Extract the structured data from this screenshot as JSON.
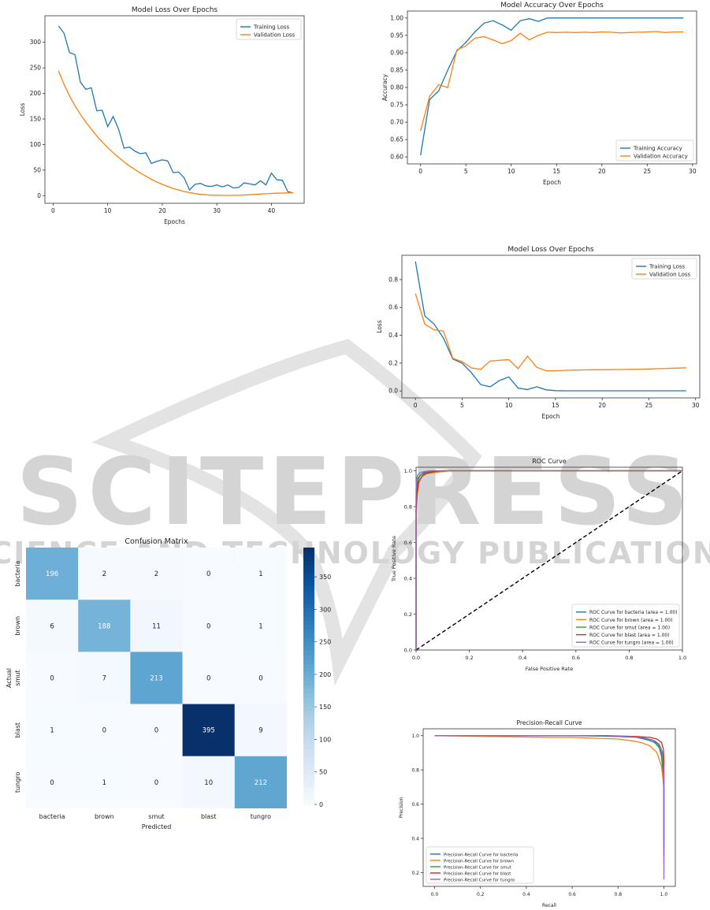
{
  "watermark": {
    "main": "SCITEPRESS",
    "sub": "SCIENCE AND TECHNOLOGY PUBLICATIONS"
  },
  "colors": {
    "blue": "#1f77b4",
    "orange": "#ff7f0e",
    "green": "#2ca02c",
    "red": "#d62728",
    "purple": "#9467bd"
  },
  "chart_data": [
    {
      "type": "line",
      "title": "Model Loss Over Epochs",
      "xlabel": "Epochs",
      "ylabel": "Loss",
      "xlim": [
        -1.5,
        46
      ],
      "ylim": [
        -15,
        352
      ],
      "xticks": [
        0,
        10,
        20,
        30,
        40
      ],
      "yticks": [
        0,
        50,
        100,
        150,
        200,
        250,
        300
      ],
      "legend": "top-right",
      "grid": false,
      "series": [
        {
          "name": "Training Loss",
          "color": "#1f77b4",
          "x": [
            1,
            2,
            3,
            4,
            5,
            6,
            7,
            8,
            9,
            10,
            11,
            12,
            13,
            14,
            15,
            16,
            17,
            18,
            19,
            20,
            21,
            22,
            23,
            24,
            25,
            26,
            27,
            28,
            29,
            30,
            31,
            32,
            33,
            34,
            35,
            36,
            37,
            38,
            39,
            40,
            41,
            42,
            43,
            44
          ],
          "y": [
            332,
            318,
            280,
            276,
            222,
            208,
            211,
            166,
            167,
            135,
            155,
            130,
            93,
            95,
            87,
            82,
            84,
            63,
            67,
            70,
            68,
            45,
            46,
            35,
            11,
            22,
            24,
            19,
            18,
            21,
            17,
            21,
            15,
            16,
            25,
            23,
            21,
            29,
            21,
            44,
            31,
            30,
            8,
            5
          ]
        },
        {
          "name": "Validation Loss",
          "color": "#ff7f0e",
          "x": [
            1,
            2,
            3,
            4,
            5,
            6,
            7,
            8,
            9,
            10,
            11,
            12,
            13,
            14,
            15,
            16,
            17,
            18,
            19,
            20,
            21,
            22,
            23,
            24,
            25,
            26,
            27,
            28,
            29,
            30,
            31,
            32,
            33,
            34,
            35,
            36,
            37,
            38,
            39,
            40,
            41,
            42,
            43,
            44
          ],
          "y": [
            244,
            218,
            195,
            176,
            159,
            144,
            130,
            117,
            105,
            94,
            84,
            75,
            66,
            58,
            51,
            44,
            38,
            32,
            27,
            22,
            18,
            14,
            11,
            8,
            6,
            4,
            2.5,
            1.5,
            1,
            0.7,
            0.5,
            0.4,
            0.5,
            0.8,
            1.2,
            1.7,
            2.3,
            3,
            3.6,
            4.2,
            4.7,
            5.1,
            5.4,
            5.6
          ]
        }
      ]
    },
    {
      "type": "line",
      "title": "Model Accuracy Over Epochs",
      "xlabel": "Epoch",
      "ylabel": "Accuracy",
      "xlim": [
        -1.45,
        30.45
      ],
      "ylim": [
        0.58,
        1.02
      ],
      "xticks": [
        0,
        5,
        10,
        15,
        20,
        25,
        30
      ],
      "yticks": [
        0.6,
        0.65,
        0.7,
        0.75,
        0.8,
        0.85,
        0.9,
        0.95,
        1.0
      ],
      "legend": "bottom-right",
      "grid": false,
      "series": [
        {
          "name": "Training Accuracy",
          "color": "#1f77b4",
          "x": [
            0,
            1,
            2,
            3,
            4,
            5,
            6,
            7,
            8,
            9,
            10,
            11,
            12,
            13,
            14,
            15,
            16,
            17,
            18,
            19,
            20,
            21,
            22,
            23,
            24,
            25,
            26,
            27,
            28,
            29
          ],
          "y": [
            0.605,
            0.765,
            0.79,
            0.85,
            0.905,
            0.93,
            0.96,
            0.985,
            0.992,
            0.98,
            0.965,
            0.992,
            0.998,
            0.99,
            1.0,
            1.0,
            1.0,
            1.0,
            1.0,
            1.0,
            1.0,
            1.0,
            1.0,
            1.0,
            1.0,
            1.0,
            1.0,
            1.0,
            1.0,
            1.0
          ]
        },
        {
          "name": "Validation Accuracy",
          "color": "#ff7f0e",
          "x": [
            0,
            1,
            2,
            3,
            4,
            5,
            6,
            7,
            8,
            9,
            10,
            11,
            12,
            13,
            14,
            15,
            16,
            17,
            18,
            19,
            20,
            21,
            22,
            23,
            24,
            25,
            26,
            27,
            28,
            29
          ],
          "y": [
            0.675,
            0.775,
            0.808,
            0.8,
            0.908,
            0.92,
            0.942,
            0.946,
            0.937,
            0.926,
            0.935,
            0.956,
            0.937,
            0.95,
            0.959,
            0.958,
            0.959,
            0.958,
            0.959,
            0.958,
            0.96,
            0.959,
            0.957,
            0.958,
            0.959,
            0.96,
            0.961,
            0.958,
            0.96,
            0.96
          ]
        }
      ]
    },
    {
      "type": "line",
      "title": "Model Loss Over Epochs",
      "xlabel": "Epoch",
      "ylabel": "Loss",
      "xlim": [
        -1.45,
        30.45
      ],
      "ylim": [
        -0.05,
        0.975
      ],
      "xticks": [
        0,
        5,
        10,
        15,
        20,
        25,
        30
      ],
      "yticks": [
        0.0,
        0.2,
        0.4,
        0.6,
        0.8
      ],
      "legend": "top-right",
      "grid": false,
      "series": [
        {
          "name": "Training Loss",
          "color": "#1f77b4",
          "x": [
            0,
            1,
            2,
            3,
            4,
            5,
            6,
            7,
            8,
            9,
            10,
            11,
            12,
            13,
            14,
            15,
            16,
            17,
            18,
            19,
            20,
            21,
            22,
            23,
            24,
            25,
            26,
            27,
            28,
            29
          ],
          "y": [
            0.93,
            0.54,
            0.48,
            0.38,
            0.23,
            0.2,
            0.13,
            0.045,
            0.03,
            0.075,
            0.1,
            0.02,
            0.01,
            0.03,
            0.008,
            0.002,
            0.001,
            0.001,
            0.001,
            0.001,
            0.001,
            0.001,
            0.001,
            0.001,
            0.001,
            0.001,
            0.001,
            0.001,
            0.001,
            0.001
          ]
        },
        {
          "name": "Validation Loss",
          "color": "#ff7f0e",
          "x": [
            0,
            1,
            2,
            3,
            4,
            5,
            6,
            7,
            8,
            9,
            10,
            11,
            12,
            13,
            14,
            15,
            16,
            17,
            18,
            19,
            20,
            21,
            22,
            23,
            24,
            25,
            26,
            27,
            28,
            29
          ],
          "y": [
            0.7,
            0.48,
            0.44,
            0.43,
            0.235,
            0.21,
            0.165,
            0.155,
            0.215,
            0.22,
            0.225,
            0.16,
            0.25,
            0.17,
            0.145,
            0.145,
            0.148,
            0.15,
            0.151,
            0.152,
            0.152,
            0.153,
            0.154,
            0.155,
            0.156,
            0.158,
            0.16,
            0.162,
            0.164,
            0.166
          ]
        }
      ]
    },
    {
      "type": "line",
      "title": "ROC Curve",
      "xlabel": "False Positive Rate",
      "ylabel": "True Positive Rate",
      "xlim": [
        0.0,
        1.0
      ],
      "ylim": [
        0.0,
        1.02
      ],
      "xticks": [
        0.0,
        0.2,
        0.4,
        0.6,
        0.8,
        1.0
      ],
      "yticks": [
        0.0,
        0.2,
        0.4,
        0.6,
        0.8,
        1.0
      ],
      "legend": "bottom-right",
      "grid": false,
      "diagonal": true,
      "series": [
        {
          "name": "ROC Curve for bacteria (area = 1.00)",
          "color": "#1f77b4",
          "x": [
            0.0,
            0.0,
            0.003,
            0.008,
            0.015,
            0.03,
            0.06,
            0.1,
            1.0
          ],
          "y": [
            0.0,
            0.8,
            0.9,
            0.95,
            0.975,
            0.99,
            0.995,
            1.0,
            1.0
          ]
        },
        {
          "name": "ROC Curve for brown (area = 1.00)",
          "color": "#ff7f0e",
          "x": [
            0.0,
            0.0,
            0.004,
            0.01,
            0.02,
            0.04,
            0.07,
            0.13,
            1.0
          ],
          "y": [
            0.0,
            0.7,
            0.86,
            0.93,
            0.965,
            0.985,
            0.99,
            1.0,
            1.0
          ]
        },
        {
          "name": "ROC Curve for smut (area = 1.00)",
          "color": "#2ca02c",
          "x": [
            0.0,
            0.0,
            0.003,
            0.008,
            0.02,
            0.04,
            0.08,
            1.0
          ],
          "y": [
            0.0,
            0.85,
            0.92,
            0.96,
            0.98,
            0.99,
            1.0,
            1.0
          ]
        },
        {
          "name": "ROC Curve for blast (area = 1.00)",
          "color": "#d62728",
          "x": [
            0.0,
            0.0,
            0.004,
            0.01,
            0.025,
            0.05,
            0.09,
            1.0
          ],
          "y": [
            0.0,
            0.78,
            0.88,
            0.94,
            0.975,
            0.99,
            1.0,
            1.0
          ]
        },
        {
          "name": "ROC Curve for tungro (area = 1.00)",
          "color": "#9467bd",
          "x": [
            0.0,
            0.0,
            0.002,
            0.006,
            0.015,
            0.03,
            0.05,
            1.0
          ],
          "y": [
            0.0,
            0.9,
            0.95,
            0.975,
            0.99,
            0.995,
            1.0,
            1.0
          ]
        }
      ]
    },
    {
      "type": "heatmap",
      "title": "Confusion Matrix",
      "xlabel": "Predicted",
      "ylabel": "Actual",
      "labels": [
        "bacteria",
        "brown",
        "smut",
        "blast",
        "tungro"
      ],
      "matrix": [
        [
          196,
          2,
          2,
          0,
          1
        ],
        [
          6,
          188,
          11,
          0,
          1
        ],
        [
          0,
          7,
          213,
          0,
          0
        ],
        [
          1,
          0,
          0,
          395,
          9
        ],
        [
          0,
          1,
          0,
          10,
          212
        ]
      ],
      "vmin": 0,
      "vmax": 395,
      "colorbar_ticks": [
        0,
        50,
        100,
        150,
        200,
        250,
        300,
        350
      ]
    },
    {
      "type": "line",
      "title": "Precision-Recall Curve",
      "xlabel": "Recall",
      "ylabel": "Precision",
      "xlim": [
        -0.05,
        1.05
      ],
      "ylim": [
        0.12,
        1.04
      ],
      "xticks": [
        0.0,
        0.2,
        0.4,
        0.6,
        0.8,
        1.0
      ],
      "yticks": [
        0.2,
        0.4,
        0.6,
        0.8,
        1.0
      ],
      "legend": "bottom-left",
      "grid": false,
      "series": [
        {
          "name": "Precision-Recall Curve for bacteria",
          "color": "#1f77b4",
          "x": [
            0.0,
            0.6,
            0.8,
            0.88,
            0.93,
            0.96,
            0.98,
            0.99,
            0.995,
            1.0,
            1.0
          ],
          "y": [
            1.0,
            1.0,
            0.995,
            0.99,
            0.975,
            0.96,
            0.93,
            0.88,
            0.8,
            0.68,
            0.3
          ]
        },
        {
          "name": "Precision-Recall Curve for brown",
          "color": "#ff7f0e",
          "x": [
            0.0,
            0.5,
            0.6,
            0.7,
            0.8,
            0.86,
            0.9,
            0.94,
            0.97,
            0.99,
            1.0,
            1.0
          ],
          "y": [
            1.0,
            0.99,
            0.99,
            0.985,
            0.98,
            0.97,
            0.96,
            0.94,
            0.9,
            0.82,
            0.7,
            0.25
          ]
        },
        {
          "name": "Precision-Recall Curve for smut",
          "color": "#2ca02c",
          "x": [
            0.0,
            0.65,
            0.82,
            0.9,
            0.95,
            0.975,
            0.99,
            1.0,
            1.0
          ],
          "y": [
            1.0,
            1.0,
            0.995,
            0.99,
            0.975,
            0.95,
            0.9,
            0.78,
            0.4
          ]
        },
        {
          "name": "Precision-Recall Curve for blast",
          "color": "#d62728",
          "x": [
            0.0,
            0.75,
            0.88,
            0.94,
            0.97,
            0.99,
            0.998,
            1.0,
            1.0
          ],
          "y": [
            1.0,
            1.0,
            0.995,
            0.99,
            0.98,
            0.96,
            0.92,
            0.85,
            0.35
          ]
        },
        {
          "name": "Precision-Recall Curve for tungro",
          "color": "#9467bd",
          "x": [
            0.0,
            0.7,
            0.85,
            0.92,
            0.96,
            0.98,
            0.995,
            1.0,
            1.0
          ],
          "y": [
            1.0,
            1.0,
            0.995,
            0.985,
            0.97,
            0.95,
            0.9,
            0.75,
            0.16
          ]
        }
      ]
    }
  ]
}
